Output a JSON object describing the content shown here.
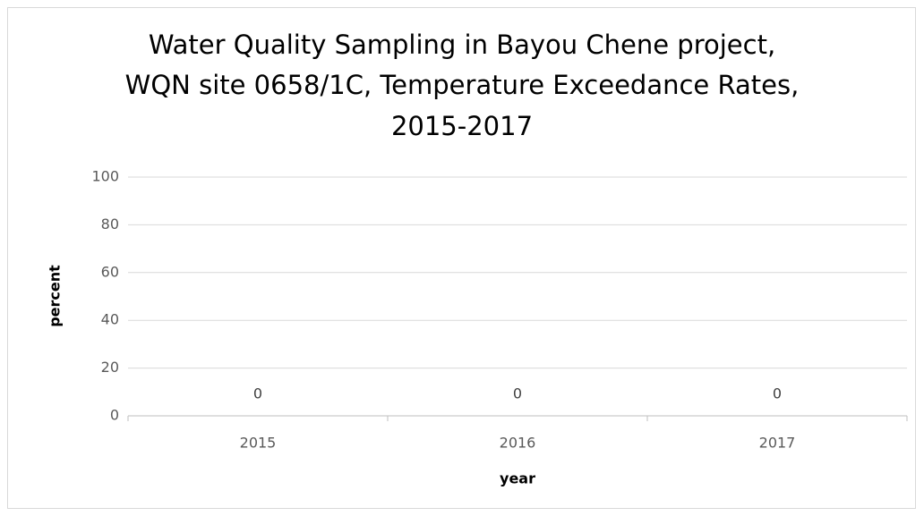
{
  "chart_data": {
    "type": "bar",
    "title": [
      "Water Quality Sampling in Bayou Chene project,",
      "WQN site 0658/1C, Temperature Exceedance Rates,",
      "2015-2017"
    ],
    "x_label": "year",
    "y_label": "percent",
    "categories": [
      "2015",
      "2016",
      "2017"
    ],
    "values": [
      0,
      0,
      0
    ],
    "color": "#4472c4",
    "ylim": [
      0,
      100
    ],
    "yticks": [
      0,
      20,
      40,
      60,
      80,
      100
    ],
    "grid": true
  }
}
